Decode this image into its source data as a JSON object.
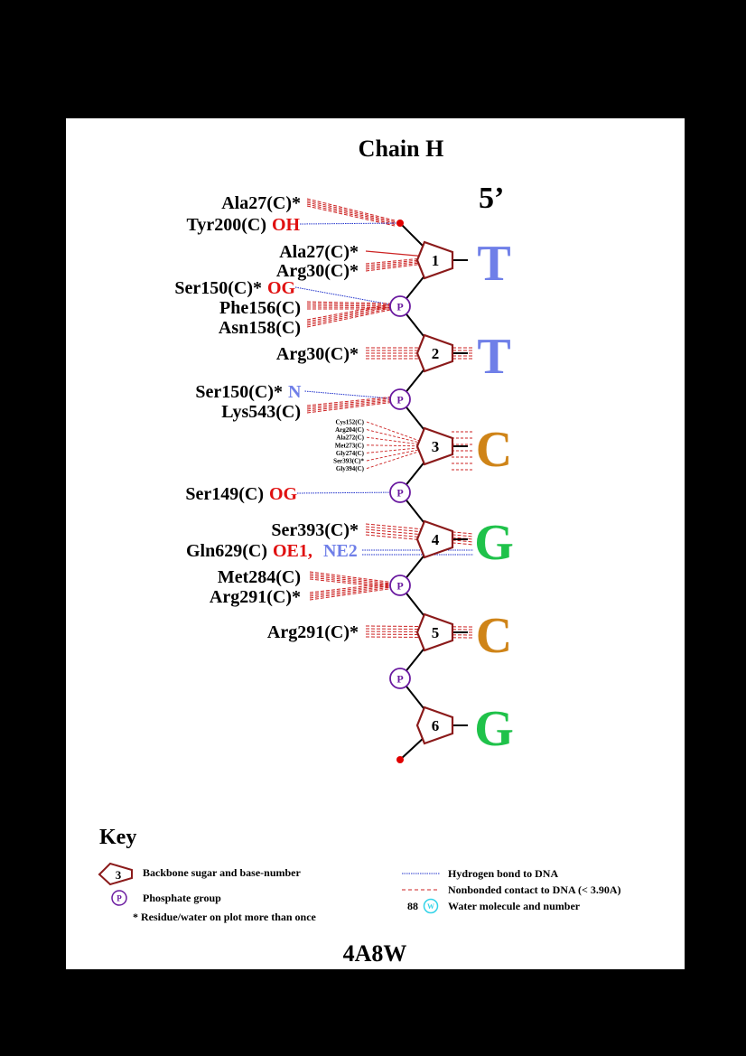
{
  "title": "Chain H",
  "five_prime": "5’",
  "pdb_id": "4A8W",
  "colors": {
    "sugar": "#8b1a1a",
    "phosphate": "#6a1aa0",
    "hbond": "#2233cc",
    "nonbonded": "#cc2222",
    "end_dot": "#e00000",
    "T": "#6f7fe8",
    "C": "#cf8418",
    "G": "#1fc24a",
    "water": "#33d3e8"
  },
  "nucleotides": [
    {
      "num": "1",
      "base": "T"
    },
    {
      "num": "2",
      "base": "T"
    },
    {
      "num": "3",
      "base": "C"
    },
    {
      "num": "4",
      "base": "G"
    },
    {
      "num": "5",
      "base": "C"
    },
    {
      "num": "6",
      "base": "G"
    }
  ],
  "phosphates": [
    {
      "label": "P"
    },
    {
      "label": "P"
    },
    {
      "label": "P"
    },
    {
      "label": "P"
    },
    {
      "label": "P"
    }
  ],
  "residues": [
    {
      "name": "Ala27(C)*",
      "atom": "",
      "atom2": "",
      "target": "end5",
      "contact": "nonbonded"
    },
    {
      "name": "Tyr200(C)",
      "atom": "OH",
      "atom_color": "red",
      "atom2": "",
      "target": "end5",
      "contact": "hbond"
    },
    {
      "name": "Ala27(C)*",
      "atom": "",
      "atom2": "",
      "target": "sugar1",
      "contact": "bond"
    },
    {
      "name": "Arg30(C)*",
      "atom": "",
      "atom2": "",
      "target": "sugar1",
      "contact": "nonbonded"
    },
    {
      "name": "Ser150(C)*",
      "atom": "OG",
      "atom_color": "red",
      "atom2": "",
      "target": "phos1",
      "contact": "hbond"
    },
    {
      "name": "Phe156(C)",
      "atom": "",
      "atom2": "",
      "target": "phos1",
      "contact": "nonbonded"
    },
    {
      "name": "Asn158(C)",
      "atom": "",
      "atom2": "",
      "target": "phos1",
      "contact": "nonbonded"
    },
    {
      "name": "Arg30(C)*",
      "atom": "",
      "atom2": "",
      "target": "sugar2",
      "contact": "nonbonded"
    },
    {
      "name": "Ser150(C)*",
      "atom": "N",
      "atom_color": "blue",
      "atom2": "",
      "target": "phos2",
      "contact": "hbond"
    },
    {
      "name": "Lys543(C)",
      "atom": "",
      "atom2": "",
      "target": "phos2",
      "contact": "nonbonded"
    },
    {
      "name": "Ser149(C)",
      "atom": "OG",
      "atom_color": "red",
      "atom2": "",
      "target": "phos3",
      "contact": "hbond"
    },
    {
      "name": "Ser393(C)*",
      "atom": "",
      "atom2": "",
      "target": "sugar4",
      "contact": "nonbonded"
    },
    {
      "name": "Gln629(C)",
      "atom": "OE1,",
      "atom_color": "red",
      "atom2": "NE2",
      "target": "sugar4",
      "contact": "hbond"
    },
    {
      "name": "Met284(C)",
      "atom": "",
      "atom2": "",
      "target": "phos4",
      "contact": "nonbonded"
    },
    {
      "name": "Arg291(C)*",
      "atom": "",
      "atom2": "",
      "target": "phos4",
      "contact": "nonbonded"
    },
    {
      "name": "Arg291(C)*",
      "atom": "",
      "atom2": "",
      "target": "sugar5",
      "contact": "nonbonded"
    }
  ],
  "small_residues": [
    "Cys152(C)",
    "Arg204(C)",
    "Ala272(C)",
    "Met273(C)",
    "Gly274(C)",
    "Ser393(C)*",
    "Gly394(C)"
  ],
  "key": {
    "heading": "Key",
    "sugar_sample": "3",
    "sugar_text": "Backbone sugar and base-number",
    "phosphate_sample": "P",
    "phosphate_text": "Phosphate group",
    "star_text": "* Residue/water on plot more than once",
    "hbond_text": "Hydrogen bond to DNA",
    "nonbonded_text": "Nonbonded contact to DNA (< 3.90A)",
    "water_number": "88",
    "water_sample": "W",
    "water_text": "Water molecule and number"
  }
}
